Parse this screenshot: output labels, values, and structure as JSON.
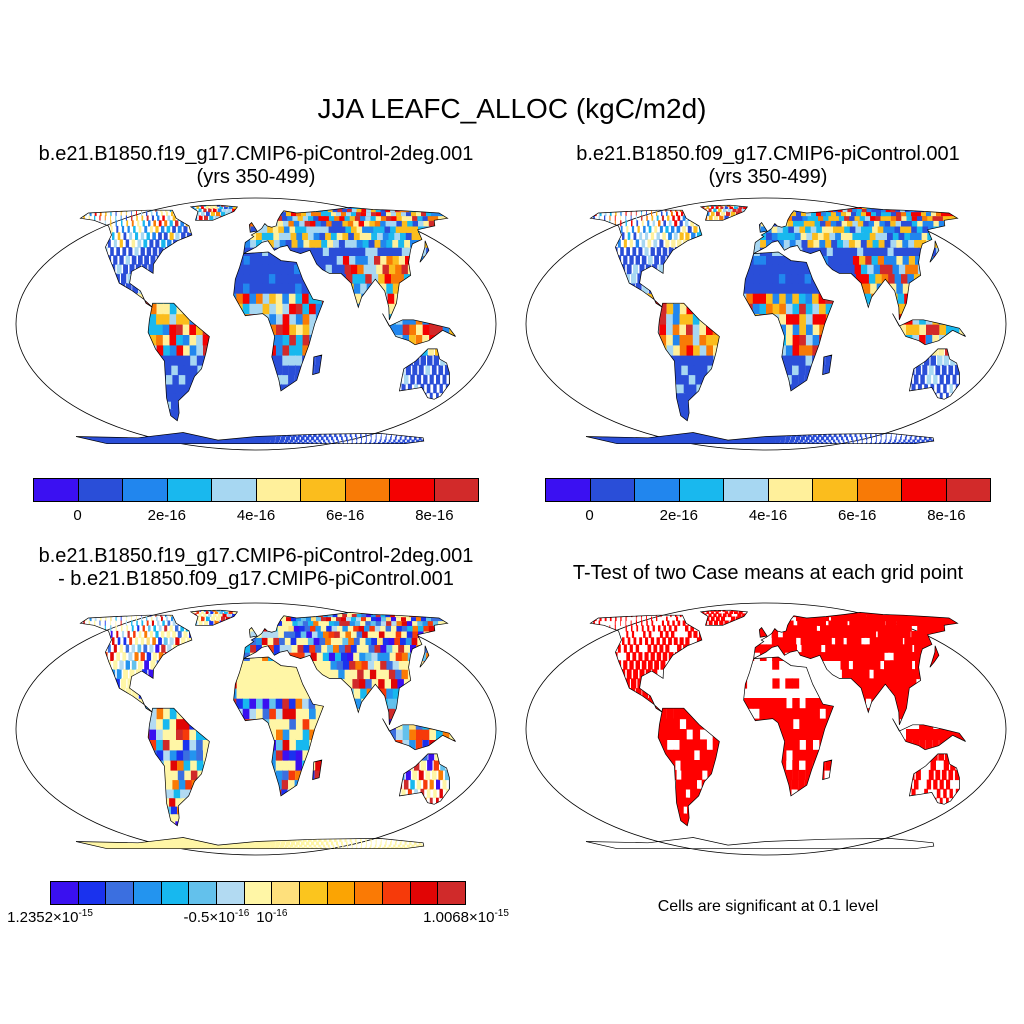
{
  "title": "JJA LEAFC_ALLOC (kgC/m2d)",
  "panels": [
    {
      "line1": "b.e21.B1850.f19_g17.CMIP6-piControl-2deg.001",
      "line2": "(yrs 350-499)"
    },
    {
      "line1": "b.e21.B1850.f09_g17.CMIP6-piControl.001",
      "line2": "(yrs 350-499)"
    },
    {
      "line1": "b.e21.B1850.f19_g17.CMIP6-piControl-2deg.001",
      "line2": "- b.e21.B1850.f09_g17.CMIP6-piControl.001"
    },
    {
      "line1": "T-Test of two Case means at each grid point",
      "line2": ""
    }
  ],
  "colorbar_abs": {
    "colors": [
      "#3b10f2",
      "#2a4ed8",
      "#2186ee",
      "#19b8ee",
      "#a7d7f2",
      "#fff09b",
      "#fbbd1d",
      "#f87a06",
      "#f40101",
      "#d22a2a"
    ],
    "ticks": [
      {
        "label": "0",
        "at": 1
      },
      {
        "label": "2e-16",
        "at": 3
      },
      {
        "label": "4e-16",
        "at": 5
      },
      {
        "label": "6e-16",
        "at": 7
      },
      {
        "label": "8e-16",
        "at": 9
      }
    ]
  },
  "colorbar_diff": {
    "colors": [
      "#3a10f0",
      "#1a32ee",
      "#3b6fe0",
      "#2394ef",
      "#17b8ef",
      "#63c1ec",
      "#b2daf2",
      "#fff6a6",
      "#fee07c",
      "#fbc51e",
      "#fba403",
      "#fa7a05",
      "#f63a0a",
      "#e10505",
      "#d02a2a"
    ],
    "ticks": [
      {
        "base": "1.2352×10",
        "exp": "-15",
        "at": 0
      },
      {
        "base": "-0.5×10",
        "exp": "-16",
        "at": 6
      },
      {
        "base": "10",
        "exp": "-16",
        "at": 8
      },
      {
        "base": "1.0068×10",
        "exp": "-15",
        "at": 15
      }
    ]
  },
  "significance_note": "Cells are significant at 0.1 level",
  "colors": {
    "ocean": "#ffffff",
    "significant": "#ff0000",
    "land_outline": "#000000"
  }
}
